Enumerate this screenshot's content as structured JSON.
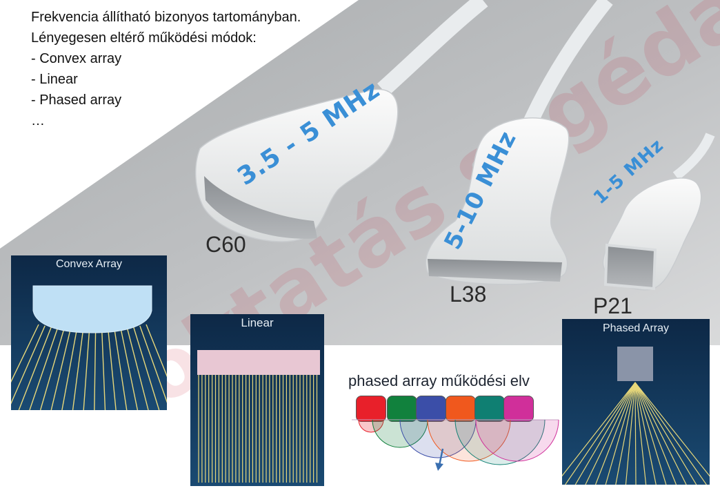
{
  "intro": {
    "line1": "Frekvencia állítható bizonyos tartományban.",
    "line2": "Lényegesen eltérő működési módok:",
    "item1": "- Convex array",
    "item2": "- Linear",
    "item3": "- Phased array",
    "ellipsis": "…"
  },
  "probes": [
    {
      "model": "C60",
      "freq": "3.5 - 5 MHz"
    },
    {
      "model": "L38",
      "freq": "5-10 MHz"
    },
    {
      "model": "P21",
      "freq": "1-5 MHz"
    }
  ],
  "panels": {
    "convex_title": "Convex Array",
    "linear_title": "Linear",
    "phased_title": "Phased Array"
  },
  "phased_principle": {
    "caption": "phased array működési elv",
    "element_colors": [
      "#e8202a",
      "#11813d",
      "#3b4ea8",
      "#f0581d",
      "#0f7f72",
      "#d02f9a"
    ]
  },
  "watermark": "oktatás segédanyag",
  "colors": {
    "frequency_text": "#3a8fd6",
    "panel_bg": "#123a5e",
    "beam_lines": "#e8d87a"
  }
}
